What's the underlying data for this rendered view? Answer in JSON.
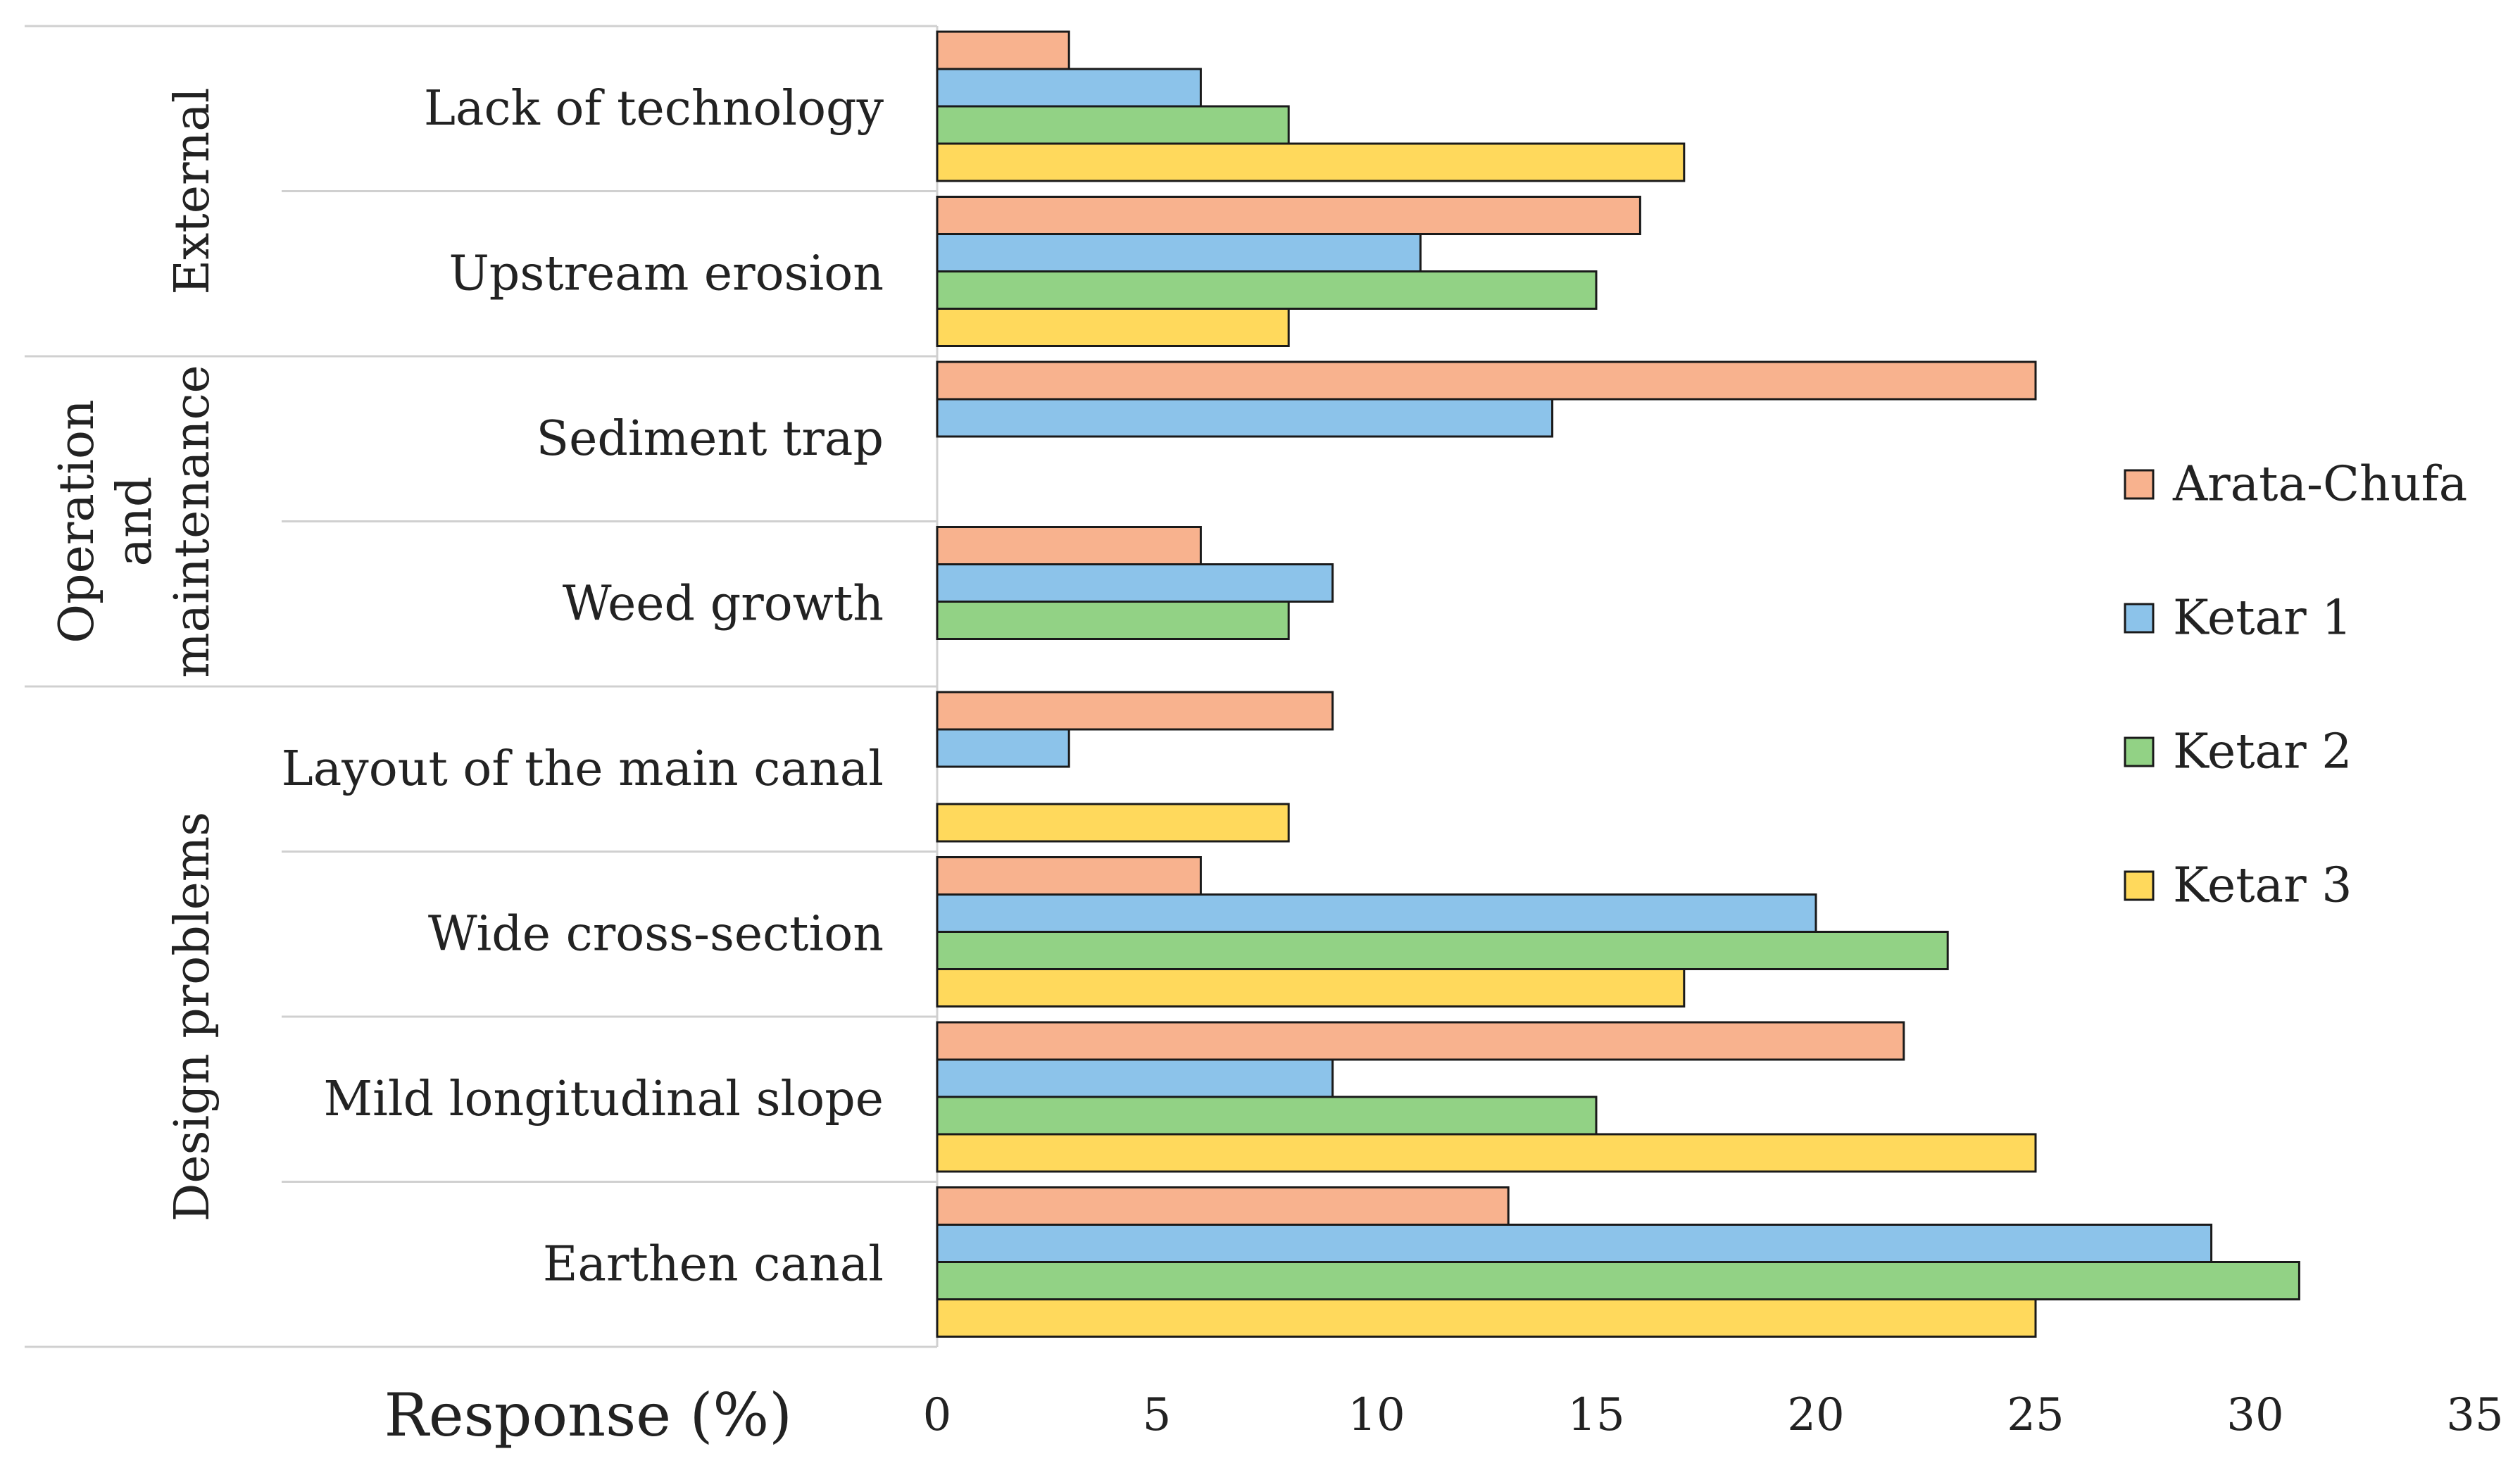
{
  "chart_data": {
    "type": "bar",
    "orientation": "horizontal",
    "xlabel": "Response (%)",
    "xlim": [
      0,
      35
    ],
    "xticks": [
      0,
      5,
      10,
      15,
      20,
      25,
      30,
      35
    ],
    "grid": false,
    "legend_position": "right",
    "groups": [
      {
        "name": "External",
        "categories": [
          "Lack of technology",
          "Upstream erosion"
        ]
      },
      {
        "name": "Operation and maintenance",
        "lines": [
          "Operation",
          "and",
          "maintenance"
        ],
        "categories": [
          "Sediment trap",
          "Weed growth"
        ]
      },
      {
        "name": "Design problems",
        "categories": [
          "Layout of the main canal",
          "Wide cross-section",
          "Mild longitudinal slope",
          "Earthen canal"
        ]
      }
    ],
    "categories": [
      "Lack of technology",
      "Upstream erosion",
      "Sediment trap",
      "Weed growth",
      "Layout of the main canal",
      "Wide cross-section",
      "Mild longitudinal slope",
      "Earthen canal"
    ],
    "series": [
      {
        "name": "Arata-Chufa",
        "color": "#F8B28E",
        "values": [
          3,
          16,
          25,
          6,
          9,
          6,
          22,
          13
        ]
      },
      {
        "name": "Ketar 1",
        "color": "#8CC3EA",
        "values": [
          6,
          11,
          14,
          9,
          3,
          20,
          9,
          29
        ]
      },
      {
        "name": "Ketar 2",
        "color": "#92D285",
        "values": [
          8,
          15,
          0,
          8,
          0,
          23,
          15,
          31
        ]
      },
      {
        "name": "Ketar 3",
        "color": "#FFD95C",
        "values": [
          17,
          8,
          0,
          0,
          8,
          17,
          25,
          25
        ]
      }
    ]
  }
}
